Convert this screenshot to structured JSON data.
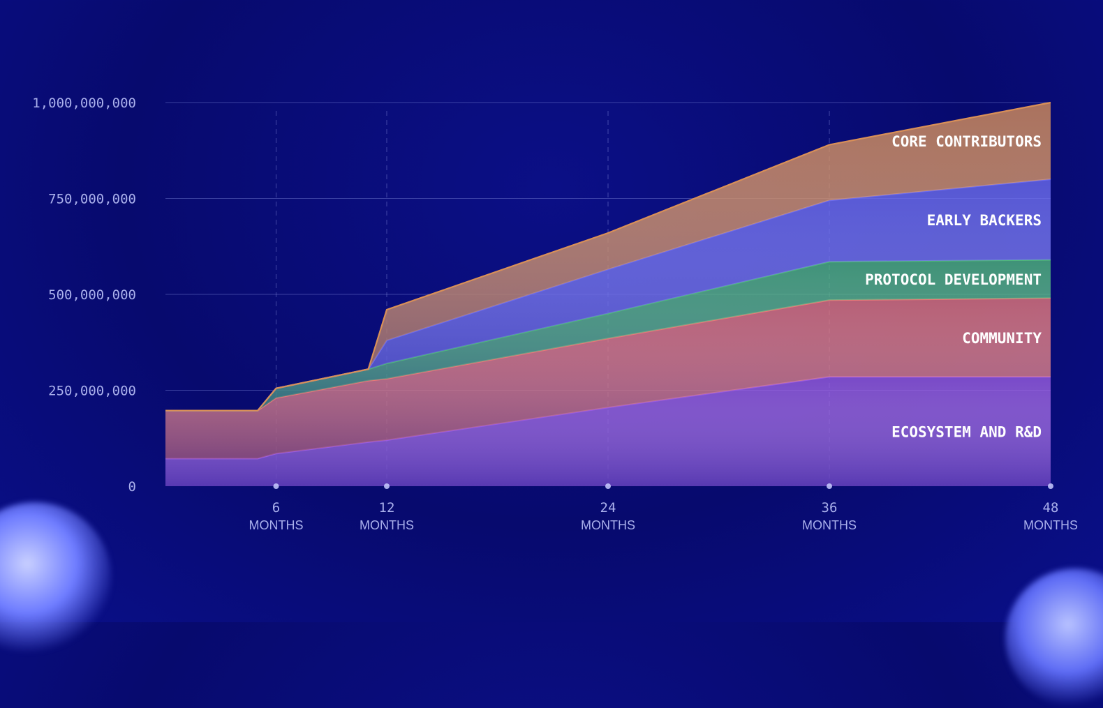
{
  "chart_data": {
    "type": "area",
    "stacked": true,
    "x": [
      0,
      5,
      6,
      11,
      12,
      24,
      36,
      48
    ],
    "xticks": [
      {
        "value": 6,
        "num": "6",
        "unit": "MONTHS"
      },
      {
        "value": 12,
        "num": "12",
        "unit": "MONTHS"
      },
      {
        "value": 24,
        "num": "24",
        "unit": "MONTHS"
      },
      {
        "value": 36,
        "num": "36",
        "unit": "MONTHS"
      },
      {
        "value": 48,
        "num": "48",
        "unit": "MONTHS"
      }
    ],
    "yticks": [
      {
        "value": 0,
        "label": "0"
      },
      {
        "value": 250000000,
        "label": "250,000,000"
      },
      {
        "value": 500000000,
        "label": "500,000,000"
      },
      {
        "value": 750000000,
        "label": "750,000,000"
      },
      {
        "value": 1000000000,
        "label": "1,000,000,000"
      }
    ],
    "ylim": [
      0,
      1000000000
    ],
    "xlim": [
      0,
      48
    ],
    "grid": true,
    "legend": "inline-right",
    "series": [
      {
        "name": "ECOSYSTEM AND R&D",
        "color": "#9a5ce0",
        "values": [
          72000000,
          72000000,
          85000000,
          115000000,
          120000000,
          205000000,
          285000000,
          285000000
        ]
      },
      {
        "name": "COMMUNITY",
        "color": "#e87878",
        "values": [
          125000000,
          125000000,
          145000000,
          160000000,
          160000000,
          180000000,
          200000000,
          205000000
        ]
      },
      {
        "name": "PROTOCOL DEVELOPMENT",
        "color": "#4fb87a",
        "values": [
          0,
          0,
          25000000,
          30000000,
          40000000,
          65000000,
          100000000,
          100000000
        ]
      },
      {
        "name": "EARLY BACKERS",
        "color": "#6c6cf0",
        "values": [
          0,
          0,
          0,
          0,
          60000000,
          115000000,
          160000000,
          210000000
        ]
      },
      {
        "name": "CORE CONTRIBUTORS",
        "color": "#d99058",
        "values": [
          0,
          0,
          0,
          0,
          80000000,
          95000000,
          145000000,
          200000000
        ]
      }
    ]
  }
}
